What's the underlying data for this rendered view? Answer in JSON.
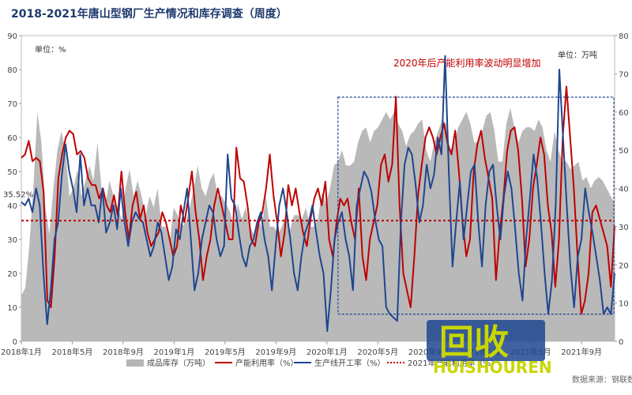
{
  "title": "2018-2021年唐山型钢厂生产情况和库存调查（周度）",
  "chart_data": {
    "type": "line",
    "left_unit": "单位：%",
    "right_unit": "单位：万吨",
    "annotation": "2020年后产能利用率波动明显增加",
    "y_left": {
      "min": 0,
      "max": 90,
      "ticks": [
        0,
        10,
        20,
        30,
        40,
        50,
        60,
        70,
        80,
        90
      ]
    },
    "y_right": {
      "min": 0,
      "max": 80,
      "ticks": [
        0,
        10,
        20,
        30,
        40,
        50,
        60,
        70,
        80
      ]
    },
    "x_ticks": [
      "2018年1月",
      "2018年5月",
      "2018年9月",
      "2019年1月",
      "2019年5月",
      "2019年9月",
      "2020年1月",
      "2020年5月",
      "2020年9月",
      "2021年1月",
      "2021年5月",
      "2021年9月"
    ],
    "reference_line": {
      "value": 35.52,
      "label": "35.52%"
    },
    "highlight_box": {
      "x_start": "2020年1月",
      "x_end": "2021年11月",
      "y_range_left": [
        8,
        70
      ]
    },
    "legend": [
      "成品库存（万吨）",
      "产能利用率（%）",
      "生产线开工率（%）",
      "2021年产能利用率（%）"
    ],
    "series": [
      {
        "name": "成品库存（万吨）",
        "axis": "right",
        "kind": "area",
        "color": "#b5b5b5",
        "values": [
          12,
          14,
          25,
          40,
          60,
          52,
          35,
          28,
          40,
          50,
          55,
          50,
          38,
          40,
          45,
          38,
          42,
          46,
          42,
          52,
          40,
          36,
          42,
          38,
          35,
          32,
          40,
          45,
          38,
          42,
          38,
          33,
          38,
          35,
          40,
          30,
          30,
          26,
          35,
          33,
          30,
          31,
          35,
          40,
          46,
          40,
          38,
          42,
          44,
          38,
          38,
          36,
          34,
          30,
          36,
          32,
          35,
          30,
          28,
          32,
          30,
          38,
          30,
          30,
          28,
          30,
          33,
          29,
          33,
          33,
          32,
          35,
          30,
          30,
          32,
          39,
          36,
          40,
          46,
          47,
          50,
          46,
          46,
          47,
          52,
          55,
          56,
          52,
          55,
          56,
          58,
          60,
          58,
          60,
          57,
          55,
          51,
          54,
          55,
          57,
          58,
          50,
          47,
          52,
          55,
          58,
          57,
          50,
          52,
          56,
          58,
          60,
          57,
          52,
          52,
          55,
          59,
          60,
          55,
          47,
          47,
          57,
          61,
          56,
          52,
          55,
          56,
          56,
          55,
          58,
          56,
          50,
          47,
          55,
          50,
          47,
          47,
          45,
          46,
          47,
          42,
          43,
          40,
          42,
          43,
          42,
          40,
          38,
          36
        ]
      },
      {
        "name": "产能利用率（%）",
        "axis": "left",
        "kind": "line",
        "color": "#c00000",
        "values": [
          54,
          55,
          59,
          53,
          54,
          53,
          44,
          12,
          10,
          25,
          48,
          55,
          60,
          62,
          61,
          55,
          56,
          54,
          48,
          46,
          46,
          42,
          45,
          40,
          38,
          43,
          37,
          50,
          38,
          30,
          40,
          44,
          36,
          40,
          32,
          28,
          30,
          32,
          38,
          35,
          30,
          25,
          28,
          40,
          35,
          42,
          50,
          38,
          30,
          18,
          25,
          30,
          40,
          45,
          40,
          35,
          30,
          30,
          57,
          48,
          47,
          40,
          30,
          28,
          35,
          38,
          45,
          55,
          43,
          35,
          25,
          32,
          46,
          40,
          45,
          38,
          32,
          28,
          36,
          42,
          45,
          40,
          47,
          30,
          25,
          35,
          42,
          40,
          42,
          35,
          30,
          45,
          25,
          18,
          30,
          35,
          40,
          52,
          55,
          47,
          52,
          72,
          40,
          20,
          15,
          10,
          25,
          43,
          52,
          60,
          63,
          60,
          55,
          60,
          64,
          58,
          55,
          62,
          50,
          35,
          25,
          30,
          50,
          58,
          62,
          54,
          48,
          42,
          18,
          32,
          42,
          56,
          62,
          63,
          56,
          42,
          22,
          30,
          45,
          52,
          60,
          55,
          40,
          32,
          16,
          30,
          60,
          75,
          60,
          45,
          25,
          8,
          12,
          20,
          38,
          40,
          36,
          32,
          28,
          16,
          34
        ]
      },
      {
        "name": "生产线开工率（%）",
        "axis": "left",
        "kind": "line",
        "color": "#1f4690",
        "values": [
          41,
          40,
          42,
          38,
          45,
          40,
          20,
          5,
          15,
          30,
          35,
          49,
          58,
          50,
          45,
          38,
          55,
          40,
          45,
          40,
          40,
          35,
          45,
          32,
          35,
          40,
          33,
          45,
          35,
          28,
          35,
          38,
          36,
          35,
          30,
          25,
          28,
          35,
          32,
          25,
          18,
          22,
          33,
          30,
          38,
          45,
          30,
          15,
          20,
          30,
          35,
          40,
          38,
          30,
          25,
          28,
          55,
          42,
          40,
          32,
          25,
          22,
          28,
          30,
          35,
          38,
          30,
          25,
          15,
          28,
          40,
          45,
          38,
          30,
          20,
          15,
          25,
          32,
          35,
          40,
          32,
          25,
          20,
          3,
          15,
          30,
          35,
          38,
          30,
          25,
          15,
          40,
          45,
          50,
          48,
          44,
          36,
          30,
          28,
          10,
          8,
          7,
          6,
          35,
          52,
          57,
          55,
          46,
          35,
          40,
          52,
          45,
          49,
          60,
          55,
          84,
          50,
          22,
          35,
          47,
          30,
          40,
          50,
          52,
          35,
          22,
          40,
          50,
          52,
          40,
          30,
          43,
          50,
          45,
          33,
          20,
          12,
          30,
          42,
          55,
          48,
          35,
          20,
          8,
          18,
          40,
          80,
          60,
          40,
          22,
          10,
          25,
          30,
          45,
          38,
          32,
          25,
          18,
          8,
          10,
          8,
          20
        ]
      }
    ]
  },
  "source": "数据来源：钢联数据",
  "watermark": {
    "brand": "回收",
    "brand_latin": "HUISHOUREN"
  },
  "colors": {
    "title": "#1f3a6e",
    "area": "#b5b5b5",
    "utilization": "#c00000",
    "operating_rate": "#1f4690",
    "reference": "#c00000",
    "highlight_box": "#1f4690",
    "watermark_fill": "#c9d600",
    "watermark_bg": "#1f4690"
  }
}
